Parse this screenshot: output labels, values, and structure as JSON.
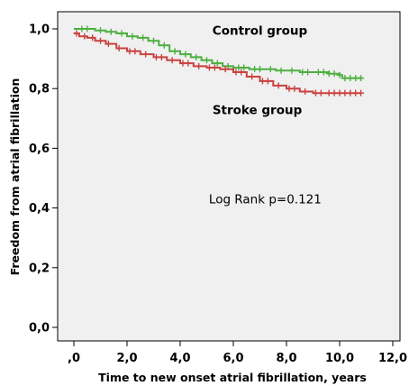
{
  "chart_data": {
    "type": "line",
    "subtype": "kaplan-meier",
    "xlabel": "Time to new onset atrial fibrillation, years",
    "ylabel": "Freedom from atrial fibrillation",
    "xlim": [
      0,
      12
    ],
    "ylim": [
      0,
      1
    ],
    "xticks": [
      {
        "value": 0,
        "label": ",0"
      },
      {
        "value": 2,
        "label": "2,0"
      },
      {
        "value": 4,
        "label": "4,0"
      },
      {
        "value": 6,
        "label": "6,0"
      },
      {
        "value": 8,
        "label": "8,0"
      },
      {
        "value": 10,
        "label": "10,0"
      },
      {
        "value": 12,
        "label": "12,0"
      }
    ],
    "yticks": [
      {
        "value": 0,
        "label": "0,0"
      },
      {
        "value": 0.2,
        "label": "0,2"
      },
      {
        "value": 0.4,
        "label": "0,4"
      },
      {
        "value": 0.6,
        "label": "0,6"
      },
      {
        "value": 0.8,
        "label": "0,8"
      },
      {
        "value": 1,
        "label": "1,0"
      }
    ],
    "background": "#f0f0f0",
    "series": [
      {
        "name": "Control group",
        "color": "#4caf3f",
        "points": [
          [
            0,
            1.0
          ],
          [
            0.6,
            1.0
          ],
          [
            0.8,
            0.995
          ],
          [
            1.2,
            0.99
          ],
          [
            1.6,
            0.985
          ],
          [
            2.0,
            0.975
          ],
          [
            2.4,
            0.97
          ],
          [
            2.8,
            0.96
          ],
          [
            3.2,
            0.945
          ],
          [
            3.6,
            0.925
          ],
          [
            4.0,
            0.915
          ],
          [
            4.4,
            0.905
          ],
          [
            4.8,
            0.895
          ],
          [
            5.2,
            0.885
          ],
          [
            5.6,
            0.875
          ],
          [
            6.0,
            0.87
          ],
          [
            6.6,
            0.865
          ],
          [
            7.2,
            0.865
          ],
          [
            7.6,
            0.86
          ],
          [
            8.0,
            0.86
          ],
          [
            8.5,
            0.855
          ],
          [
            9.0,
            0.855
          ],
          [
            9.6,
            0.85
          ],
          [
            10.0,
            0.845
          ],
          [
            10.1,
            0.835
          ],
          [
            10.8,
            0.835
          ]
        ],
        "censor_x": [
          0.3,
          0.5,
          1.0,
          1.4,
          1.8,
          2.2,
          2.6,
          3.0,
          3.4,
          3.8,
          4.2,
          4.6,
          5.0,
          5.4,
          5.8,
          6.2,
          6.4,
          6.8,
          7.0,
          7.4,
          7.8,
          8.2,
          8.6,
          8.8,
          9.2,
          9.4,
          9.6,
          9.8,
          10.0,
          10.2,
          10.4,
          10.6,
          10.8
        ]
      },
      {
        "name": "Stroke group",
        "color": "#c9423f",
        "points": [
          [
            0,
            0.985
          ],
          [
            0.2,
            0.975
          ],
          [
            0.5,
            0.97
          ],
          [
            0.8,
            0.96
          ],
          [
            1.2,
            0.95
          ],
          [
            1.6,
            0.935
          ],
          [
            2.0,
            0.925
          ],
          [
            2.5,
            0.915
          ],
          [
            3.0,
            0.905
          ],
          [
            3.5,
            0.895
          ],
          [
            4.0,
            0.885
          ],
          [
            4.5,
            0.875
          ],
          [
            5.0,
            0.87
          ],
          [
            5.5,
            0.865
          ],
          [
            6.0,
            0.855
          ],
          [
            6.5,
            0.84
          ],
          [
            7.0,
            0.825
          ],
          [
            7.5,
            0.81
          ],
          [
            8.0,
            0.8
          ],
          [
            8.5,
            0.79
          ],
          [
            9.0,
            0.785
          ],
          [
            9.5,
            0.785
          ],
          [
            10.8,
            0.785
          ]
        ],
        "censor_x": [
          0.1,
          0.4,
          0.7,
          1.0,
          1.3,
          1.7,
          2.1,
          2.3,
          2.7,
          3.1,
          3.3,
          3.7,
          4.1,
          4.3,
          4.7,
          5.1,
          5.3,
          5.7,
          6.1,
          6.3,
          6.7,
          7.1,
          7.3,
          7.7,
          8.1,
          8.3,
          8.7,
          9.1,
          9.3,
          9.6,
          9.8,
          10.0,
          10.2,
          10.4,
          10.6,
          10.8
        ]
      }
    ],
    "labels": {
      "control": "Control group",
      "stroke": "Stroke group",
      "logrank": "Log Rank p=0.121"
    },
    "label_positions": {
      "control": [
        7.0,
        0.98
      ],
      "stroke": [
        6.9,
        0.715
      ],
      "logrank": [
        7.2,
        0.415
      ]
    }
  }
}
